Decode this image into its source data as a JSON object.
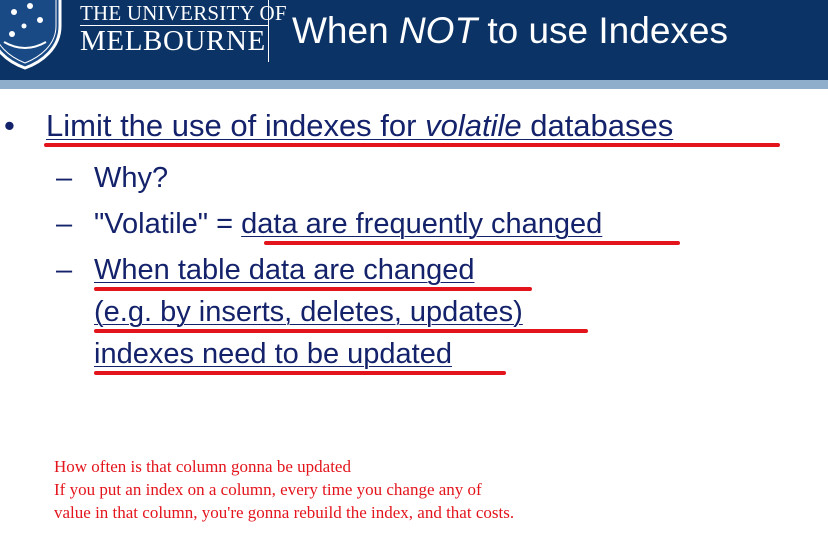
{
  "header": {
    "university_line1": "THE UNIVERSITY OF",
    "university_line2": "MELBOURNE",
    "crest_icon": "university-crest-icon",
    "title_pre": "When ",
    "title_emph": "NOT",
    "title_post": " to use Indexes",
    "colors": {
      "header_bg": "#0b3366",
      "stripe": "#8eaecc"
    }
  },
  "bullets": {
    "main": {
      "pre": "Limit the use of indexes for ",
      "emph": "volatile",
      "post": " databases"
    },
    "sub1": "Why?",
    "sub2_prefix": "\"Volatile\" = ",
    "sub2_highlight": "data are frequently changed",
    "sub3_line1": "When table data are changed",
    "sub3_line2": "(e.g. by inserts, deletes, updates)",
    "sub3_line3": "indexes need to be updated",
    "bullet_glyph": "•",
    "dash_glyph": "–"
  },
  "notes": {
    "line1": "How often is that column gonna be updated",
    "line2": "If you put an index on a column, every time you change any of",
    "line3": "value in that column, you're gonna rebuild the index, and that costs."
  },
  "colors": {
    "text": "#13226a",
    "annotation": "#e3141c"
  }
}
